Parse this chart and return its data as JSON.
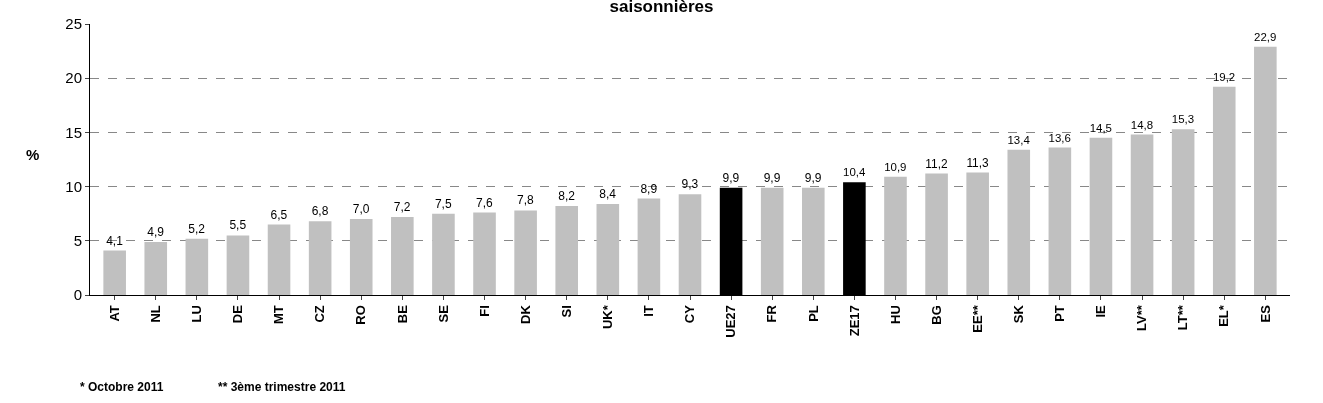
{
  "chart_data": {
    "type": "bar",
    "title": "saisonnières",
    "ylabel": "%",
    "categories": [
      "AT",
      "NL",
      "LU",
      "DE",
      "MT",
      "CZ",
      "RO",
      "BE",
      "SE",
      "FI",
      "DK",
      "SI",
      "UK*",
      "IT",
      "CY",
      "UE27",
      "FR",
      "PL",
      "ZE17",
      "HU",
      "BG",
      "EE**",
      "SK",
      "PT",
      "IE",
      "LV**",
      "LT**",
      "EL*",
      "ES"
    ],
    "values": [
      4.1,
      4.9,
      5.2,
      5.5,
      6.5,
      6.8,
      7.0,
      7.2,
      7.5,
      7.6,
      7.8,
      8.2,
      8.4,
      8.9,
      9.3,
      9.9,
      9.9,
      9.9,
      10.4,
      10.9,
      11.2,
      11.3,
      13.4,
      13.6,
      14.5,
      14.8,
      15.3,
      19.2,
      22.9
    ],
    "value_labels": [
      "4,1",
      "4,9",
      "5,2",
      "5,5",
      "6,5",
      "6,8",
      "7,0",
      "7,2",
      "7,5",
      "7,6",
      "7,8",
      "8,2",
      "8,4",
      "8,9",
      "9,3",
      "9,9",
      "9,9",
      "9,9",
      "10,4",
      "10,9",
      "11,2",
      "11,3",
      "13,4",
      "13,6",
      "14,5",
      "14,8",
      "15,3",
      "19,2",
      "22,9"
    ],
    "colors": [
      "#c0c0c0",
      "#c0c0c0",
      "#c0c0c0",
      "#c0c0c0",
      "#c0c0c0",
      "#c0c0c0",
      "#c0c0c0",
      "#c0c0c0",
      "#c0c0c0",
      "#c0c0c0",
      "#c0c0c0",
      "#c0c0c0",
      "#c0c0c0",
      "#c0c0c0",
      "#c0c0c0",
      "#000000",
      "#c0c0c0",
      "#c0c0c0",
      "#000000",
      "#c0c0c0",
      "#c0c0c0",
      "#c0c0c0",
      "#c0c0c0",
      "#c0c0c0",
      "#c0c0c0",
      "#c0c0c0",
      "#c0c0c0",
      "#c0c0c0",
      "#c0c0c0"
    ],
    "ylim": [
      0,
      25
    ],
    "yticks": [
      0,
      5,
      10,
      15,
      20,
      25
    ],
    "grid": "y",
    "annotations": [
      "* Octobre 2011",
      "** 3ème trimestre 2011"
    ]
  }
}
